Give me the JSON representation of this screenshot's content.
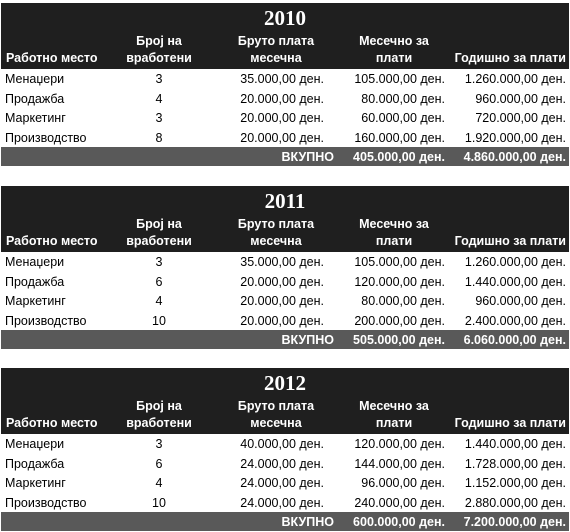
{
  "columns": {
    "position": "Работно место",
    "employees_1": "Број на",
    "employees_2": "вработени",
    "gross_1": "Бруто плата",
    "gross_2": "месечна",
    "monthly_1": "Месечно за",
    "monthly_2": "плати",
    "yearly": "Годишно за плати"
  },
  "total_label": "ВКУПНО",
  "tables": [
    {
      "year": "2010",
      "rows": [
        {
          "position": "Менаџери",
          "employees": "3",
          "gross": "35.000,00 ден.",
          "monthly": "105.000,00 ден.",
          "yearly": "1.260.000,00 ден."
        },
        {
          "position": "Продажба",
          "employees": "4",
          "gross": "20.000,00 ден.",
          "monthly": "80.000,00 ден.",
          "yearly": "960.000,00 ден."
        },
        {
          "position": "Маркетинг",
          "employees": "3",
          "gross": "20.000,00 ден.",
          "monthly": "60.000,00 ден.",
          "yearly": "720.000,00 ден."
        },
        {
          "position": "Производство",
          "employees": "8",
          "gross": "20.000,00 ден.",
          "monthly": "160.000,00 ден.",
          "yearly": "1.920.000,00 ден."
        }
      ],
      "total_monthly": "405.000,00 ден.",
      "total_yearly": "4.860.000,00 ден."
    },
    {
      "year": "2011",
      "rows": [
        {
          "position": "Менаџери",
          "employees": "3",
          "gross": "35.000,00 ден.",
          "monthly": "105.000,00 ден.",
          "yearly": "1.260.000,00 ден."
        },
        {
          "position": "Продажба",
          "employees": "6",
          "gross": "20.000,00 ден.",
          "monthly": "120.000,00 ден.",
          "yearly": "1.440.000,00 ден."
        },
        {
          "position": "Маркетинг",
          "employees": "4",
          "gross": "20.000,00 ден.",
          "monthly": "80.000,00 ден.",
          "yearly": "960.000,00 ден."
        },
        {
          "position": "Производство",
          "employees": "10",
          "gross": "20.000,00 ден.",
          "monthly": "200.000,00 ден.",
          "yearly": "2.400.000,00 ден."
        }
      ],
      "total_monthly": "505.000,00 ден.",
      "total_yearly": "6.060.000,00 ден."
    },
    {
      "year": "2012",
      "rows": [
        {
          "position": "Менаџери",
          "employees": "3",
          "gross": "40.000,00 ден.",
          "monthly": "120.000,00 ден.",
          "yearly": "1.440.000,00 ден."
        },
        {
          "position": "Продажба",
          "employees": "6",
          "gross": "24.000,00 ден.",
          "monthly": "144.000,00 ден.",
          "yearly": "1.728.000,00 ден."
        },
        {
          "position": "Маркетинг",
          "employees": "4",
          "gross": "24.000,00 ден.",
          "monthly": "96.000,00 ден.",
          "yearly": "1.152.000,00 ден."
        },
        {
          "position": "Производство",
          "employees": "10",
          "gross": "24.000,00 ден.",
          "monthly": "240.000,00 ден.",
          "yearly": "2.880.000,00 ден."
        }
      ],
      "total_monthly": "600.000,00 ден.",
      "total_yearly": "7.200.000,00 ден."
    }
  ]
}
